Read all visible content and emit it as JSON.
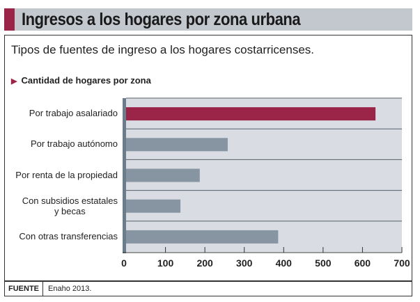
{
  "header": {
    "title": "Ingresos a los hogares por zona urbana",
    "subtitle": "Tipos de fuentes de ingreso a los hogares costarricenses.",
    "section": "Cantidad de hogares por zona"
  },
  "chart_data": {
    "type": "bar",
    "orientation": "horizontal",
    "title": "Cantidad de hogares por zona",
    "categories": [
      "Por trabajo asalariado",
      "Por trabajo autónomo",
      "Por renta de la propiedad",
      "Con subsidios estatales y becas",
      "Con otras transferencias"
    ],
    "values": [
      633,
      258,
      187,
      138,
      386
    ],
    "xlim": [
      0,
      700
    ],
    "xticks": [
      "0",
      "100",
      "200",
      "300",
      "400",
      "500",
      "600",
      "700"
    ],
    "colors": [
      "#9b2449",
      "#8795a2",
      "#8795a2",
      "#8795a2",
      "#8795a2"
    ],
    "grid": true
  },
  "footer": {
    "label": "FUENTE",
    "source": "Enaho 2013."
  }
}
